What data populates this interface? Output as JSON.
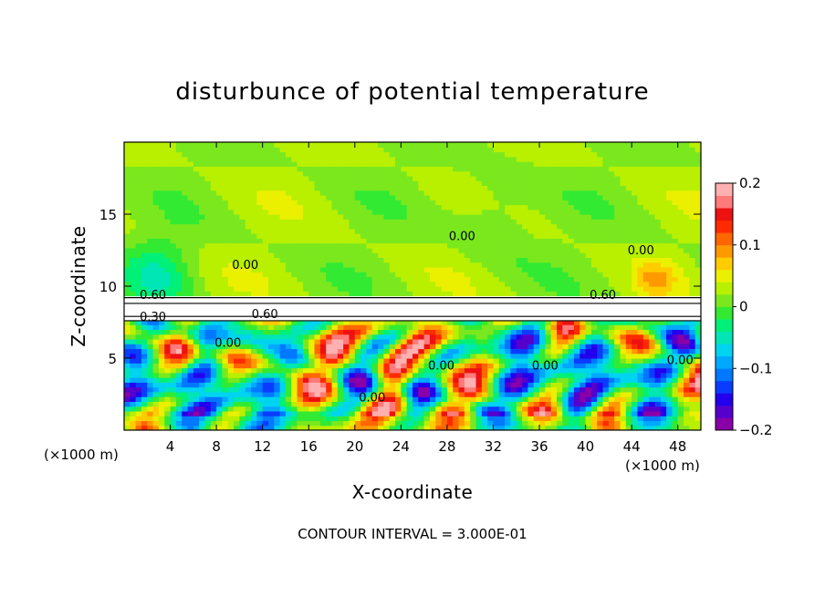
{
  "chart_data": {
    "type": "heatmap",
    "title": "disturbunce of potential temperature",
    "xlabel": "X-coordinate",
    "ylabel": "Z-coordinate",
    "x_unit_left": "(×1000 m)",
    "x_unit_right": "(×1000 m)",
    "contour_interval": "CONTOUR INTERVAL = 3.000E-01",
    "xlim": [
      0,
      50
    ],
    "ylim": [
      0,
      20
    ],
    "xticks": [
      4,
      8,
      12,
      16,
      20,
      24,
      28,
      32,
      36,
      40,
      44,
      48
    ],
    "xtick_labels": [
      "4",
      "8",
      "12",
      "16",
      "20",
      "24",
      "28",
      "32",
      "36",
      "40",
      "44",
      "48"
    ],
    "yticks": [
      5,
      10,
      15
    ],
    "ytick_labels": [
      "5",
      "10",
      "15"
    ],
    "colorbar": {
      "range": [
        -0.2,
        0.2
      ],
      "ticks": [
        -0.2,
        -0.1,
        0,
        0.1,
        0.2
      ],
      "tick_labels": [
        "−0.2",
        "−0.1",
        "0",
        "0.1",
        "0.2"
      ],
      "colors": [
        "#8a00a8",
        "#5500cc",
        "#2200ee",
        "#0a3cff",
        "#0078ff",
        "#00a8ff",
        "#00d4f0",
        "#00e6b4",
        "#00f078",
        "#33ea33",
        "#7be81e",
        "#b8f000",
        "#eaf000",
        "#ffcc00",
        "#ff9900",
        "#ff6600",
        "#ff2a00",
        "#ee1111",
        "#ff7a7a",
        "#ffb0b0"
      ]
    },
    "contour_labels": [
      {
        "text": "0.00",
        "x": 10.5,
        "z": 11.2
      },
      {
        "text": "0.00",
        "x": 29.3,
        "z": 13.2
      },
      {
        "text": "0.00",
        "x": 44.8,
        "z": 12.2
      },
      {
        "text": "0.60",
        "x": 2.5,
        "z": 9.1
      },
      {
        "text": "0.30",
        "x": 2.5,
        "z": 7.6
      },
      {
        "text": "0.60",
        "x": 12.2,
        "z": 7.8
      },
      {
        "text": "0.60",
        "x": 41.5,
        "z": 9.1
      },
      {
        "text": "0.00",
        "x": 9.0,
        "z": 5.8
      },
      {
        "text": "0.00",
        "x": 27.5,
        "z": 4.2
      },
      {
        "text": "0.00",
        "x": 36.5,
        "z": 4.2
      },
      {
        "text": "0.00",
        "x": 48.2,
        "z": 4.6
      },
      {
        "text": "0.00",
        "x": 21.5,
        "z": 2.0
      }
    ],
    "field_description_free": true
  }
}
